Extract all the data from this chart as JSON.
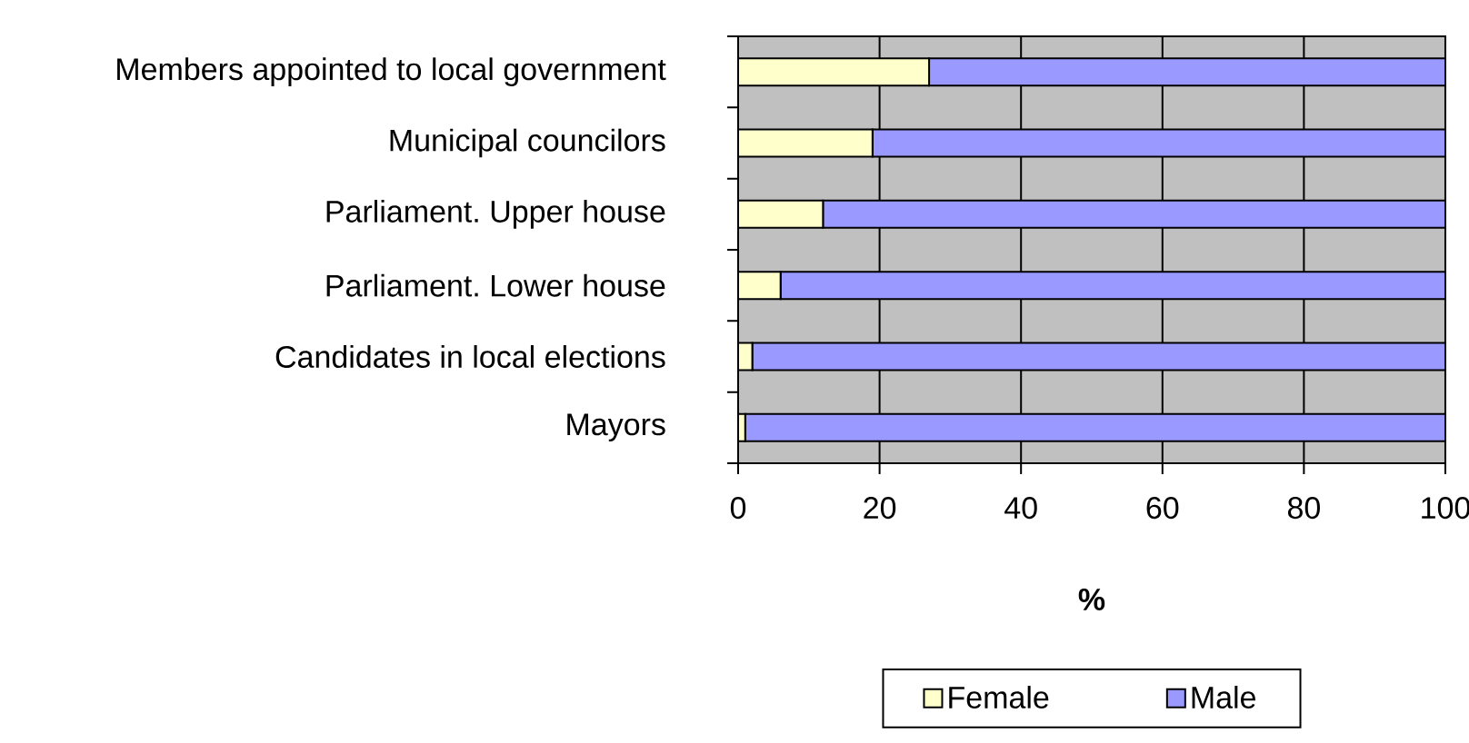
{
  "chart_data": {
    "type": "bar",
    "orientation": "horizontal",
    "stacked": true,
    "categories": [
      "Members appointed to local government",
      "Municipal councilors",
      "Parliament. Upper house",
      "Parliament. Lower house",
      "Candidates in local elections",
      "Mayors"
    ],
    "series": [
      {
        "name": "Female",
        "color": "#ffffcc",
        "values": [
          27,
          19,
          12,
          6,
          2,
          1
        ]
      },
      {
        "name": "Male",
        "color": "#9999ff",
        "values": [
          73,
          81,
          88,
          94,
          98,
          99
        ]
      }
    ],
    "xlabel": "%",
    "xlim": [
      0,
      100
    ],
    "xticks": [
      0,
      20,
      40,
      60,
      80,
      100
    ],
    "grid": "x",
    "legend": "bottom"
  }
}
